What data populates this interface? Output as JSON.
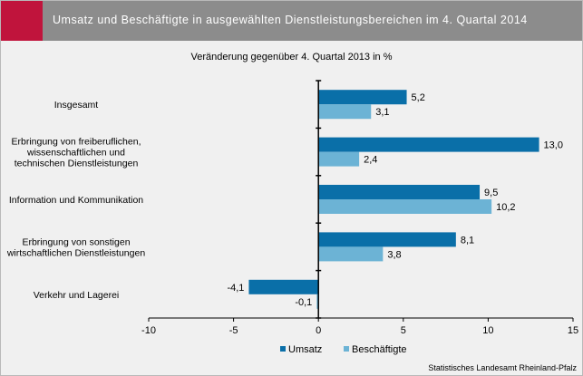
{
  "header": {
    "title": "Umsatz und Beschäftigte in ausgewählten Dienstleistungsbereichen im 4. Quartal 2014"
  },
  "footer": {
    "source": "Statistisches Landesamt Rheinland-Pfalz"
  },
  "colors": {
    "header_bg": "#8c8c8c",
    "accent": "#c0143c",
    "umsatz": "#0a6fa8",
    "beschaeftigte": "#6cb3d5",
    "background": "#f0f0f0"
  },
  "chart_data": {
    "type": "bar",
    "orientation": "horizontal",
    "subtitle": "Veränderung gegenüber 4. Quartal 2013 in %",
    "categories": [
      [
        "Insgesamt"
      ],
      [
        "Erbringung von freiberuflichen,",
        "wissenschaftlichen und",
        "technischen Dienstleistungen"
      ],
      [
        "Information und Kommunikation"
      ],
      [
        "Erbringung von sonstigen",
        "wirtschaftlichen Dienstleistungen"
      ],
      [
        "Verkehr und Lagerei"
      ]
    ],
    "series": [
      {
        "name": "Umsatz",
        "values": [
          5.2,
          13.0,
          9.5,
          8.1,
          -4.1
        ],
        "labels": [
          "5,2",
          "13,0",
          "9,5",
          "8,1",
          "-4,1"
        ]
      },
      {
        "name": "Beschäftigte",
        "values": [
          3.1,
          2.4,
          10.2,
          3.8,
          -0.1
        ],
        "labels": [
          "3,1",
          "2,4",
          "10,2",
          "3,8",
          "-0,1"
        ]
      }
    ],
    "xlim": [
      -10,
      15
    ],
    "xticks": [
      -10,
      -5,
      0,
      5,
      10,
      15
    ],
    "xtick_labels": [
      "-10",
      "-5",
      "0",
      "5",
      "10",
      "15"
    ],
    "grid": false,
    "legend_position": "bottom"
  }
}
